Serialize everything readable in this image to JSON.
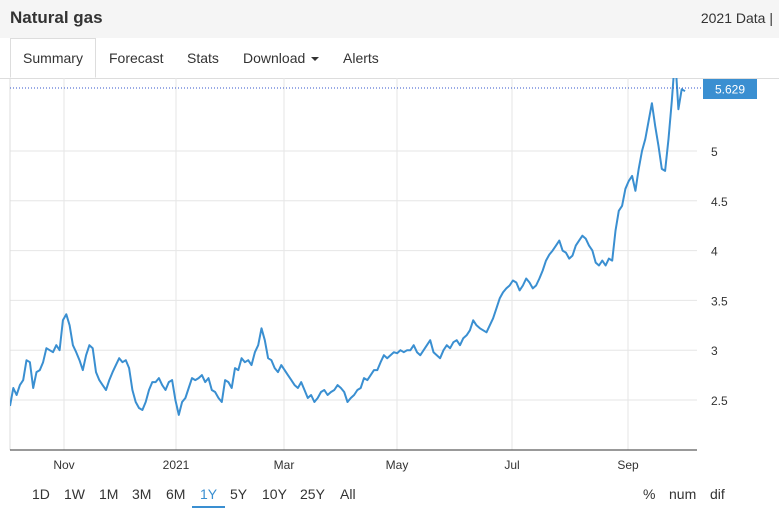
{
  "header": {
    "title": "Natural gas",
    "right_text": "2021 Data |"
  },
  "tabs": [
    {
      "label": "Summary",
      "active": true
    },
    {
      "label": "Forecast"
    },
    {
      "label": "Stats"
    },
    {
      "label": "Download",
      "dropdown": true
    },
    {
      "label": "Alerts"
    }
  ],
  "ranges": [
    "1D",
    "1W",
    "1M",
    "3M",
    "6M",
    "1Y",
    "5Y",
    "10Y",
    "25Y",
    "All"
  ],
  "active_range": "1Y",
  "options": [
    "%",
    "num",
    "dif"
  ],
  "colors": {
    "line": "#3a8fd1",
    "grid": "#e6e6e6",
    "price_label_bg": "#3a8fd1"
  },
  "chart_data": {
    "type": "line",
    "current_value_label": "5.629",
    "x_labels": [
      "Nov",
      "2021",
      "Mar",
      "May",
      "Jul",
      "Sep"
    ],
    "y_ticks": [
      "2.5",
      "3",
      "3.5",
      "4",
      "4.5",
      "5"
    ],
    "ylim": [
      2.0,
      5.7
    ],
    "grid": true,
    "series": [
      {
        "values": [
          2.44,
          2.62,
          2.55,
          2.65,
          2.7,
          2.9,
          2.88,
          2.62,
          2.78,
          2.8,
          2.88,
          3.02,
          3.0,
          2.98,
          3.05,
          3.0,
          3.3,
          3.36,
          3.25,
          3.05,
          2.98,
          2.9,
          2.8,
          2.95,
          3.05,
          3.02,
          2.78,
          2.7,
          2.65,
          2.6,
          2.7,
          2.78,
          2.85,
          2.92,
          2.88,
          2.9,
          2.82,
          2.6,
          2.48,
          2.42,
          2.4,
          2.48,
          2.6,
          2.68,
          2.68,
          2.72,
          2.65,
          2.6,
          2.68,
          2.7,
          2.5,
          2.35,
          2.48,
          2.52,
          2.62,
          2.72,
          2.7,
          2.72,
          2.75,
          2.68,
          2.72,
          2.6,
          2.58,
          2.52,
          2.48,
          2.7,
          2.68,
          2.62,
          2.82,
          2.8,
          2.92,
          2.88,
          2.9,
          2.85,
          2.98,
          3.05,
          3.22,
          3.1,
          2.92,
          2.9,
          2.82,
          2.78,
          2.85,
          2.8,
          2.75,
          2.7,
          2.65,
          2.62,
          2.68,
          2.6,
          2.52,
          2.55,
          2.48,
          2.52,
          2.58,
          2.6,
          2.55,
          2.58,
          2.6,
          2.65,
          2.62,
          2.58,
          2.48,
          2.52,
          2.55,
          2.6,
          2.62,
          2.72,
          2.7,
          2.75,
          2.8,
          2.8,
          2.88,
          2.95,
          2.92,
          2.95,
          2.98,
          2.97,
          3.0,
          2.98,
          3.0,
          3.0,
          3.05,
          2.98,
          2.95,
          3.0,
          3.05,
          3.1,
          2.98,
          2.95,
          2.92,
          3.0,
          3.05,
          3.02,
          3.08,
          3.1,
          3.05,
          3.12,
          3.15,
          3.2,
          3.3,
          3.25,
          3.22,
          3.2,
          3.18,
          3.25,
          3.32,
          3.42,
          3.52,
          3.58,
          3.62,
          3.65,
          3.7,
          3.68,
          3.6,
          3.65,
          3.72,
          3.68,
          3.62,
          3.65,
          3.72,
          3.8,
          3.9,
          3.96,
          4.0,
          4.05,
          4.1,
          4.0,
          3.98,
          3.92,
          3.95,
          4.05,
          4.1,
          4.15,
          4.12,
          4.05,
          4.0,
          3.88,
          3.85,
          3.9,
          3.85,
          3.92,
          3.9,
          4.2,
          4.4,
          4.45,
          4.62,
          4.7,
          4.75,
          4.6,
          4.82,
          5.0,
          5.12,
          5.3,
          5.48,
          5.25,
          5.05,
          4.82,
          4.8,
          5.12,
          5.5,
          5.95,
          5.42,
          5.62,
          5.6
        ]
      }
    ]
  }
}
